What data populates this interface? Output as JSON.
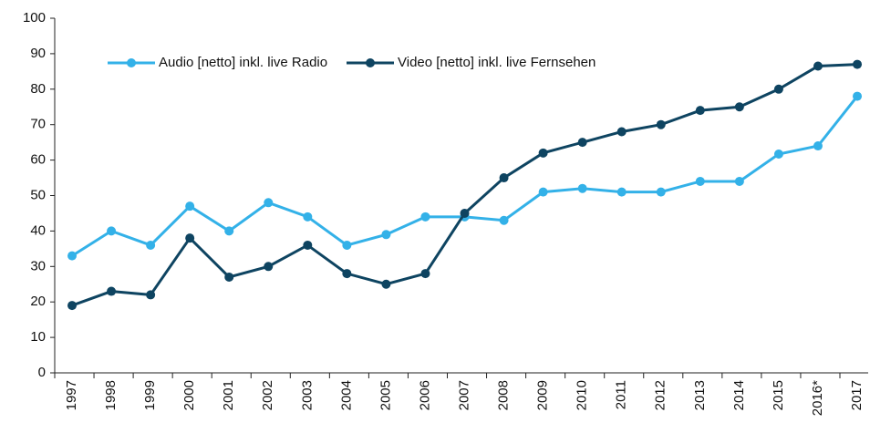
{
  "chart_data": {
    "type": "line",
    "categories": [
      "1997",
      "1998",
      "1999",
      "2000",
      "2001",
      "2002",
      "2003",
      "2004",
      "2005",
      "2006",
      "2007",
      "2008",
      "2009",
      "2010",
      "2011",
      "2012",
      "2013",
      "2014",
      "2015",
      "2016*",
      "2017"
    ],
    "series": [
      {
        "name": "Audio [netto] inkl. live Radio",
        "color": "#33b1e8",
        "values": [
          33,
          40,
          36,
          47,
          40,
          48,
          44,
          36,
          39,
          44,
          44,
          43,
          51,
          52,
          51,
          51,
          54,
          54,
          61.7,
          64,
          78
        ]
      },
      {
        "name": "Video [netto] inkl. live Fernsehen",
        "color": "#0e4461",
        "values": [
          19,
          23,
          22,
          38,
          27,
          30,
          36,
          28,
          25,
          28,
          45,
          55,
          62,
          65,
          68,
          70,
          74,
          75,
          80,
          86.5,
          87
        ]
      }
    ],
    "ylim": [
      0,
      100
    ],
    "yticks": [
      0,
      10,
      20,
      30,
      40,
      50,
      60,
      70,
      80,
      90,
      100
    ],
    "grid": false
  }
}
